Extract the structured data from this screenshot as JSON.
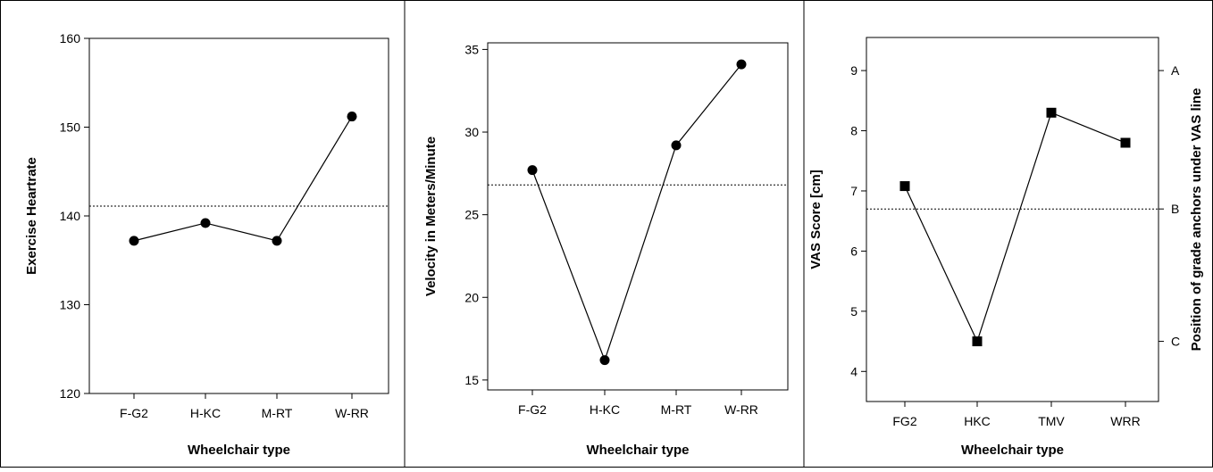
{
  "chart_data": [
    {
      "type": "line",
      "title": "",
      "xlabel": "Wheelchair type",
      "ylabel": "Exercise Heartrate",
      "categories": [
        "F-G2",
        "H-KC",
        "M-RT",
        "W-RR"
      ],
      "series": [
        {
          "values": [
            137.2,
            139.2,
            137.2,
            151.2
          ],
          "marker": "circle"
        }
      ],
      "reference_line": {
        "value": 141.1,
        "style": "dotted"
      },
      "ylim": [
        120,
        160
      ],
      "yticks": [
        "120",
        "130",
        "140",
        "150",
        "160"
      ],
      "grid": false
    },
    {
      "type": "line",
      "title": "",
      "xlabel": "Wheelchair type",
      "ylabel": "Velocity in Meters/Minute",
      "categories": [
        "F-G2",
        "H-KC",
        "M-RT",
        "W-RR"
      ],
      "series": [
        {
          "values": [
            27.7,
            16.2,
            29.2,
            34.1
          ],
          "marker": "circle"
        }
      ],
      "reference_line": {
        "value": 26.8,
        "style": "dotted"
      },
      "ylim": [
        14.4,
        35.4
      ],
      "yticks": [
        "15",
        "20",
        "25",
        "30",
        "35"
      ],
      "grid": false
    },
    {
      "type": "line",
      "title": "",
      "xlabel": "Wheelchair type",
      "ylabel": "VAS Score [cm]",
      "y2label": "Position of grade anchors under VAS line",
      "categories": [
        "FG2",
        "HKC",
        "TMV",
        "WRR"
      ],
      "series": [
        {
          "values": [
            7.08,
            4.5,
            8.3,
            7.8
          ],
          "marker": "square"
        }
      ],
      "reference_line": {
        "value": 6.7,
        "style": "dotted"
      },
      "ylim": [
        3.5,
        9.55
      ],
      "yticks": [
        "4",
        "5",
        "6",
        "7",
        "8",
        "9"
      ],
      "y2ticks": [
        {
          "label": "A",
          "value": 9.0
        },
        {
          "label": "B",
          "value": 6.7
        },
        {
          "label": "C",
          "value": 4.5
        }
      ],
      "grid": false
    }
  ]
}
